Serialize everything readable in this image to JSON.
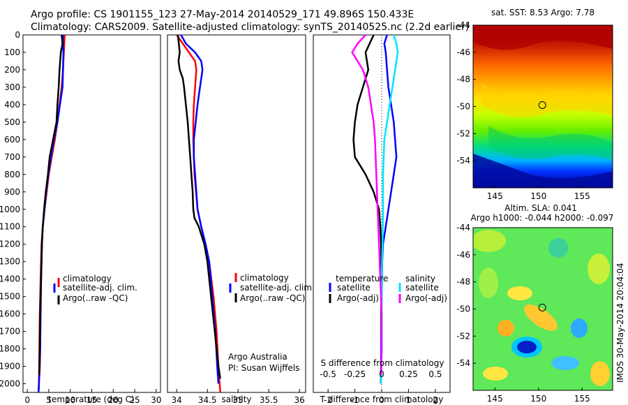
{
  "title_line1": "Argo profile: CS 1901155_123 27-May-2014 20140529_171 49.896S 150.433E",
  "title_line2": "Climatology: CARS2009. Satellite-adjusted climatology: synTS_20140525.nc (2.2d earlier)",
  "watermark": "IMOS 30-May-2014 20:04:04",
  "colors": {
    "climatology": "#ff0000",
    "satellite": "#0000ff",
    "argo": "#000000",
    "sal_satellite": "#00e5ff",
    "sal_argo": "#ff00ff"
  },
  "chart_data": [
    {
      "id": "temperature",
      "type": "line",
      "xlabel": "temperature (deg C)",
      "xlim": [
        -1,
        31
      ],
      "ylim": [
        2050,
        0
      ],
      "xticks": [
        0,
        5,
        10,
        15,
        20,
        25,
        30
      ],
      "yticks": [
        0,
        100,
        200,
        300,
        400,
        500,
        600,
        700,
        800,
        900,
        1000,
        1100,
        1200,
        1300,
        1400,
        1500,
        1600,
        1700,
        1800,
        1900,
        2000
      ],
      "legend": [
        "climatology",
        "satellite-adj. clim.",
        "Argo(..raw -QC)"
      ],
      "series": [
        {
          "name": "climatology",
          "color": "#ff0000",
          "x": [
            8.7,
            8.6,
            8.5,
            8.3,
            8.0,
            7.5,
            7.0,
            6.4,
            5.7,
            5.0,
            4.5,
            4.0,
            3.6,
            3.3,
            3.1,
            2.9,
            2.8,
            2.75,
            2.7,
            2.65,
            2.6
          ],
          "y": [
            0,
            50,
            100,
            200,
            300,
            400,
            500,
            600,
            700,
            800,
            900,
            1000,
            1100,
            1200,
            1400,
            1600,
            1800,
            1900,
            2000,
            2030,
            2050
          ]
        },
        {
          "name": "satellite-adj. clim.",
          "color": "#0000ff",
          "x": [
            8.3,
            8.3,
            8.4,
            8.3,
            8.2,
            7.6,
            7.0,
            6.2,
            5.5,
            4.9,
            4.4,
            4.0,
            3.6,
            3.4,
            3.2,
            3.1,
            3.0,
            2.9,
            2.7,
            2.6
          ],
          "y": [
            0,
            50,
            100,
            200,
            300,
            400,
            500,
            600,
            700,
            800,
            900,
            1000,
            1100,
            1200,
            1400,
            1600,
            1800,
            1900,
            2000,
            2050
          ]
        },
        {
          "name": "Argo(..raw -QC)",
          "color": "#000000",
          "x": [
            8.0,
            8.2,
            7.8,
            7.5,
            7.3,
            7.0,
            6.8,
            6.0,
            5.2,
            4.8,
            4.3,
            3.9,
            3.6,
            3.4,
            3.2,
            3.0,
            2.9,
            2.8
          ],
          "y": [
            0,
            50,
            100,
            200,
            300,
            400,
            500,
            600,
            700,
            800,
            900,
            1000,
            1100,
            1200,
            1400,
            1600,
            1800,
            1950
          ]
        }
      ]
    },
    {
      "id": "salinity",
      "type": "line",
      "xlabel": "salinity",
      "xlim": [
        33.85,
        36.1
      ],
      "ylim": [
        2050,
        0
      ],
      "xticks": [
        34,
        34.5,
        35,
        35.5,
        36
      ],
      "legend": [
        "climatology",
        "satellite-adj. clim.",
        "Argo(..raw -QC)"
      ],
      "annotation": [
        "Argo Australia",
        "PI: Susan Wijffels"
      ],
      "series": [
        {
          "name": "climatology",
          "color": "#ff0000",
          "x": [
            34.0,
            34.1,
            34.2,
            34.3,
            34.32,
            34.3,
            34.28,
            34.27,
            34.27,
            34.29,
            34.34,
            34.4,
            34.47,
            34.53,
            34.6,
            34.65,
            34.68,
            34.7,
            34.71
          ],
          "y": [
            0,
            50,
            100,
            150,
            200,
            300,
            400,
            500,
            600,
            800,
            1000,
            1100,
            1200,
            1300,
            1500,
            1700,
            1900,
            2000,
            2050
          ]
        },
        {
          "name": "satellite-adj. clim.",
          "color": "#0000ff",
          "x": [
            34.07,
            34.15,
            34.3,
            34.4,
            34.42,
            34.38,
            34.34,
            34.31,
            34.28,
            34.28,
            34.3,
            34.34,
            34.4,
            34.47,
            34.53,
            34.58,
            34.63,
            34.66,
            34.68
          ],
          "y": [
            0,
            50,
            100,
            150,
            200,
            300,
            400,
            500,
            600,
            700,
            800,
            1000,
            1100,
            1200,
            1300,
            1500,
            1700,
            1900,
            2000
          ]
        },
        {
          "name": "Argo(..raw -QC)",
          "color": "#000000",
          "x": [
            34.02,
            34.05,
            34.03,
            34.05,
            34.1,
            34.12,
            34.15,
            34.18,
            34.2,
            34.22,
            34.24,
            34.26,
            34.27,
            34.29,
            34.36,
            34.45,
            34.5,
            34.56,
            34.62,
            34.68,
            34.71
          ],
          "y": [
            0,
            100,
            150,
            200,
            250,
            300,
            400,
            500,
            600,
            700,
            800,
            900,
            1000,
            1050,
            1100,
            1200,
            1300,
            1500,
            1700,
            1900,
            1970
          ]
        }
      ]
    },
    {
      "id": "differences",
      "type": "line",
      "xlabel": "T difference from climatology",
      "xlabel_top": "S difference from climatology",
      "xlim": [
        -2.55,
        2.55
      ],
      "ylim": [
        2050,
        0
      ],
      "xticks": [
        -2,
        -1,
        0,
        1,
        2
      ],
      "xticks_top": [
        "-0.5",
        "-0.25",
        "0",
        "0.25",
        "0.5"
      ],
      "legend_temperature": [
        "temperature",
        "satellite",
        "Argo(-adj)"
      ],
      "legend_salinity": [
        "salinity",
        "satellite",
        "Argo(-adj)"
      ],
      "series": [
        {
          "name": "temperature satellite",
          "color": "#0000ff",
          "x": [
            0.2,
            0.1,
            0.15,
            0.2,
            0.25,
            0.35,
            0.45,
            0.5,
            0.55,
            0.45,
            0.35,
            0.25,
            0.15,
            0.05,
            0.02,
            0.0,
            -0.02,
            -0.02,
            -0.03
          ],
          "y": [
            0,
            50,
            100,
            200,
            300,
            400,
            500,
            600,
            700,
            800,
            900,
            1000,
            1100,
            1200,
            1300,
            1500,
            1700,
            1900,
            2000
          ]
        },
        {
          "name": "temperature Argo(-adj)",
          "color": "#000000",
          "x": [
            -0.3,
            -0.45,
            -0.6,
            -0.5,
            -0.7,
            -0.9,
            -1.0,
            -1.05,
            -1.0,
            -0.6,
            -0.3,
            -0.1,
            -0.05,
            -0.02,
            0.0,
            -0.02,
            0.0,
            -0.03
          ],
          "y": [
            0,
            50,
            100,
            200,
            300,
            400,
            500,
            600,
            700,
            800,
            900,
            1000,
            1100,
            1200,
            1400,
            1600,
            1800,
            1950
          ]
        },
        {
          "name": "salinity satellite",
          "color": "#00e5ff",
          "x": [
            0.45,
            0.55,
            0.6,
            0.5,
            0.4,
            0.3,
            0.2,
            0.1,
            0.05,
            0.05,
            0.03,
            0.0,
            0.0,
            0.0,
            -0.02
          ],
          "y": [
            0,
            50,
            100,
            200,
            300,
            400,
            500,
            600,
            800,
            1000,
            1200,
            1400,
            1600,
            1800,
            2000
          ]
        },
        {
          "name": "salinity Argo(-adj)",
          "color": "#ff00ff",
          "x": [
            -0.6,
            -0.9,
            -1.1,
            -0.7,
            -0.5,
            -0.4,
            -0.3,
            -0.25,
            -0.2,
            -0.15,
            -0.1,
            -0.05,
            0.0,
            0.0,
            -0.02
          ],
          "y": [
            0,
            50,
            100,
            200,
            300,
            400,
            500,
            600,
            800,
            1000,
            1200,
            1400,
            1600,
            1800,
            1950
          ]
        }
      ]
    },
    {
      "id": "sst-map",
      "type": "heatmap",
      "title": "sat. SST: 8.53  Argo: 7.78",
      "xlim": [
        142.5,
        158.5
      ],
      "ylim": [
        -56,
        -44
      ],
      "xticks": [
        145,
        150,
        155
      ],
      "yticks": [
        -44,
        -46,
        -48,
        -50,
        -52,
        -54
      ],
      "marker": {
        "lon": 150.433,
        "lat": -49.896
      }
    },
    {
      "id": "sla-map",
      "type": "heatmap",
      "title_line1": "Altim. SLA: 0.041",
      "title_line2": "Argo h1000: -0.044  h2000: -0.097",
      "xlim": [
        142.5,
        158.5
      ],
      "ylim": [
        -56,
        -44
      ],
      "xticks": [
        145,
        150,
        155
      ],
      "yticks": [
        -44,
        -46,
        -48,
        -50,
        -52,
        -54
      ],
      "marker": {
        "lon": 150.433,
        "lat": -49.896
      }
    }
  ]
}
